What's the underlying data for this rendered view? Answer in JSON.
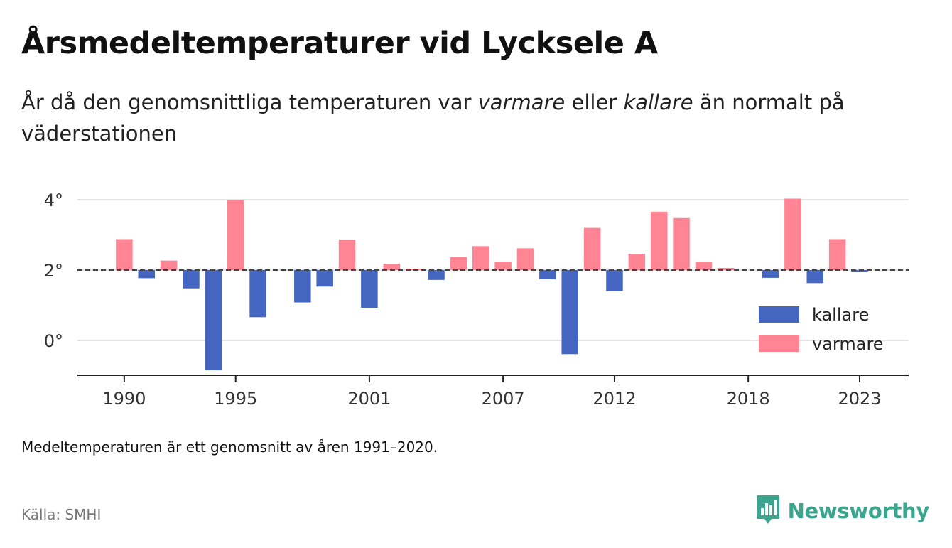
{
  "title": "Årsmedeltemperaturer vid Lycksele A",
  "subtitle": {
    "part1": "År då den genomsnittliga temperaturen var ",
    "warm_word": "varmare",
    "part2": " eller ",
    "cold_word": "kallare",
    "part3": " än normalt på väderstationen"
  },
  "note": "Medeltemperaturen är ett genomsnitt av åren 1991–2020.",
  "source": "Källa: SMHI",
  "brand": {
    "name": "Newsworthy",
    "icon": "newsworthy-logo-icon",
    "color": "#3aa68f"
  },
  "chart_data": {
    "type": "bar",
    "baseline": 2.0,
    "ylim": [
      -1.0,
      4.0
    ],
    "yticks": [
      {
        "value": 0,
        "label": "0°"
      },
      {
        "value": 2,
        "label": "2°"
      },
      {
        "value": 4,
        "label": "4°"
      }
    ],
    "xlim": [
      1987.9,
      2025.2
    ],
    "xticks": [
      1990,
      1995,
      2001,
      2007,
      2012,
      2018,
      2023
    ],
    "colors": {
      "kallare": "#4466c0",
      "varmare": "#ff8595"
    },
    "legend": {
      "position": "bottom-right",
      "entries": [
        "kallare",
        "varmare"
      ]
    },
    "values": [
      {
        "year": 1990,
        "temp": 2.88
      },
      {
        "year": 1991,
        "temp": 1.77
      },
      {
        "year": 1992,
        "temp": 2.27
      },
      {
        "year": 1993,
        "temp": 1.48
      },
      {
        "year": 1994,
        "temp": -0.85
      },
      {
        "year": 1995,
        "temp": 4.0
      },
      {
        "year": 1996,
        "temp": 0.66
      },
      {
        "year": 1998,
        "temp": 1.08
      },
      {
        "year": 1999,
        "temp": 1.53
      },
      {
        "year": 2000,
        "temp": 2.87
      },
      {
        "year": 2001,
        "temp": 0.93
      },
      {
        "year": 2002,
        "temp": 2.18
      },
      {
        "year": 2003,
        "temp": 2.04
      },
      {
        "year": 2004,
        "temp": 1.72
      },
      {
        "year": 2005,
        "temp": 2.37
      },
      {
        "year": 2006,
        "temp": 2.68
      },
      {
        "year": 2007,
        "temp": 2.24
      },
      {
        "year": 2008,
        "temp": 2.62
      },
      {
        "year": 2009,
        "temp": 1.74
      },
      {
        "year": 2010,
        "temp": -0.39
      },
      {
        "year": 2011,
        "temp": 3.2
      },
      {
        "year": 2012,
        "temp": 1.4
      },
      {
        "year": 2013,
        "temp": 2.46
      },
      {
        "year": 2014,
        "temp": 3.66
      },
      {
        "year": 2015,
        "temp": 3.48
      },
      {
        "year": 2016,
        "temp": 2.24
      },
      {
        "year": 2017,
        "temp": 2.06
      },
      {
        "year": 2019,
        "temp": 1.78
      },
      {
        "year": 2020,
        "temp": 4.03
      },
      {
        "year": 2021,
        "temp": 1.63
      },
      {
        "year": 2022,
        "temp": 2.88
      },
      {
        "year": 2023,
        "temp": 1.95
      }
    ]
  }
}
